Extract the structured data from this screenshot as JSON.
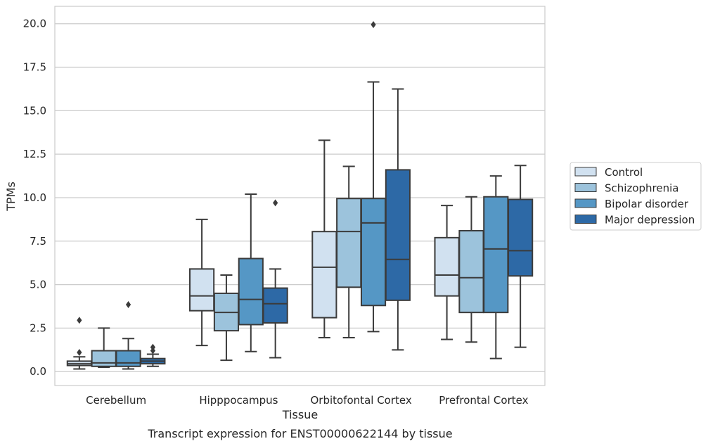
{
  "chart_data": {
    "type": "box",
    "xlabel": "Tissue",
    "ylabel": "TPMs",
    "caption": "Transcript expression for ENST00000622144 by tissue",
    "ylim": [
      -0.8,
      21.0
    ],
    "yticks": [
      0.0,
      2.5,
      5.0,
      7.5,
      10.0,
      12.5,
      15.0,
      17.5,
      20.0
    ],
    "ytick_labels": [
      "0.0",
      "2.5",
      "5.0",
      "7.5",
      "10.0",
      "12.5",
      "15.0",
      "17.5",
      "20.0"
    ],
    "grid": "horizontal",
    "legend_position": "right",
    "categories": [
      "Cerebellum",
      "Hipppocampus",
      "Orbitofontal Cortex",
      "Prefrontal Cortex"
    ],
    "series": [
      {
        "name": "Control",
        "color": "#d1e1f0",
        "boxes": [
          {
            "whislo": 0.15,
            "q1": 0.35,
            "med": 0.45,
            "q3": 0.6,
            "whishi": 0.85,
            "fliers": [
              1.1,
              2.95
            ]
          },
          {
            "whislo": 1.5,
            "q1": 3.5,
            "med": 4.35,
            "q3": 5.9,
            "whishi": 8.75,
            "fliers": []
          },
          {
            "whislo": 1.95,
            "q1": 3.1,
            "med": 6.0,
            "q3": 8.05,
            "whishi": 13.3,
            "fliers": []
          },
          {
            "whislo": 1.85,
            "q1": 4.35,
            "med": 5.55,
            "q3": 7.7,
            "whishi": 9.55,
            "fliers": []
          }
        ]
      },
      {
        "name": "Schizophrenia",
        "color": "#9cc3dc",
        "boxes": [
          {
            "whislo": 0.25,
            "q1": 0.3,
            "med": 0.5,
            "q3": 1.2,
            "whishi": 2.5,
            "fliers": []
          },
          {
            "whislo": 0.65,
            "q1": 2.35,
            "med": 3.4,
            "q3": 4.5,
            "whishi": 5.55,
            "fliers": []
          },
          {
            "whislo": 1.95,
            "q1": 4.85,
            "med": 8.05,
            "q3": 9.95,
            "whishi": 11.8,
            "fliers": []
          },
          {
            "whislo": 1.7,
            "q1": 3.4,
            "med": 5.4,
            "q3": 8.1,
            "whishi": 10.05,
            "fliers": []
          }
        ]
      },
      {
        "name": "Bipolar disorder",
        "color": "#5597c5",
        "boxes": [
          {
            "whislo": 0.15,
            "q1": 0.3,
            "med": 0.5,
            "q3": 1.2,
            "whishi": 1.9,
            "fliers": [
              3.85
            ]
          },
          {
            "whislo": 1.15,
            "q1": 2.7,
            "med": 4.15,
            "q3": 6.5,
            "whishi": 10.2,
            "fliers": []
          },
          {
            "whislo": 2.3,
            "q1": 3.8,
            "med": 8.55,
            "q3": 9.95,
            "whishi": 16.65,
            "fliers": [
              19.95
            ]
          },
          {
            "whislo": 0.75,
            "q1": 3.4,
            "med": 7.05,
            "q3": 10.05,
            "whishi": 11.25,
            "fliers": []
          }
        ]
      },
      {
        "name": "Major depression",
        "color": "#2d69a6",
        "boxes": [
          {
            "whislo": 0.3,
            "q1": 0.45,
            "med": 0.6,
            "q3": 0.75,
            "whishi": 1.0,
            "fliers": [
              1.2,
              1.4
            ]
          },
          {
            "whislo": 0.8,
            "q1": 2.8,
            "med": 3.9,
            "q3": 4.8,
            "whishi": 5.9,
            "fliers": [
              9.7
            ]
          },
          {
            "whislo": 1.25,
            "q1": 4.1,
            "med": 6.45,
            "q3": 11.6,
            "whishi": 16.25,
            "fliers": []
          },
          {
            "whislo": 1.4,
            "q1": 5.5,
            "med": 6.95,
            "q3": 9.9,
            "whishi": 11.85,
            "fliers": []
          }
        ]
      }
    ]
  }
}
